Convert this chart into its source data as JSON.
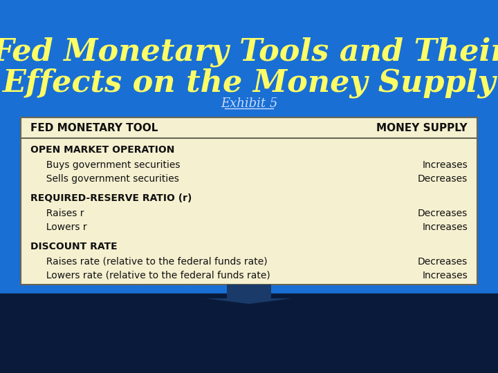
{
  "title_line1": "Fed Monetary Tools and Their",
  "title_line2": "Effects on the Money Supply",
  "subtitle": "Exhibit 5",
  "bg_color": "#1a6fd4",
  "bg_bottom_color": "#0a1a3a",
  "title_color": "#ffff66",
  "subtitle_color": "#ccddff",
  "table_bg": "#f5f0d0",
  "table_border": "#666655",
  "header_row_label": "FED MONETARY TOOL",
  "header_col_label": "MONEY SUPPLY",
  "rows": [
    {
      "section": "OPEN MARKET OPERATION",
      "items": [
        {
          "label": "  Buys government securities",
          "effect": "Increases"
        },
        {
          "label": "  Sells government securities",
          "effect": "Decreases"
        }
      ]
    },
    {
      "section": "REQUIRED-RESERVE RATIO (r)",
      "items": [
        {
          "label": "  Raises r",
          "effect": "Decreases"
        },
        {
          "label": "  Lowers r",
          "effect": "Increases"
        }
      ]
    },
    {
      "section": "DISCOUNT RATE",
      "items": [
        {
          "label": "  Raises rate (relative to the federal funds rate)",
          "effect": "Decreases"
        },
        {
          "label": "  Lowers rate (relative to the federal funds rate)",
          "effect": "Increases"
        }
      ]
    }
  ],
  "arrow_color": "#1a3a6a",
  "figsize": [
    7.2,
    5.4
  ],
  "dpi": 100
}
